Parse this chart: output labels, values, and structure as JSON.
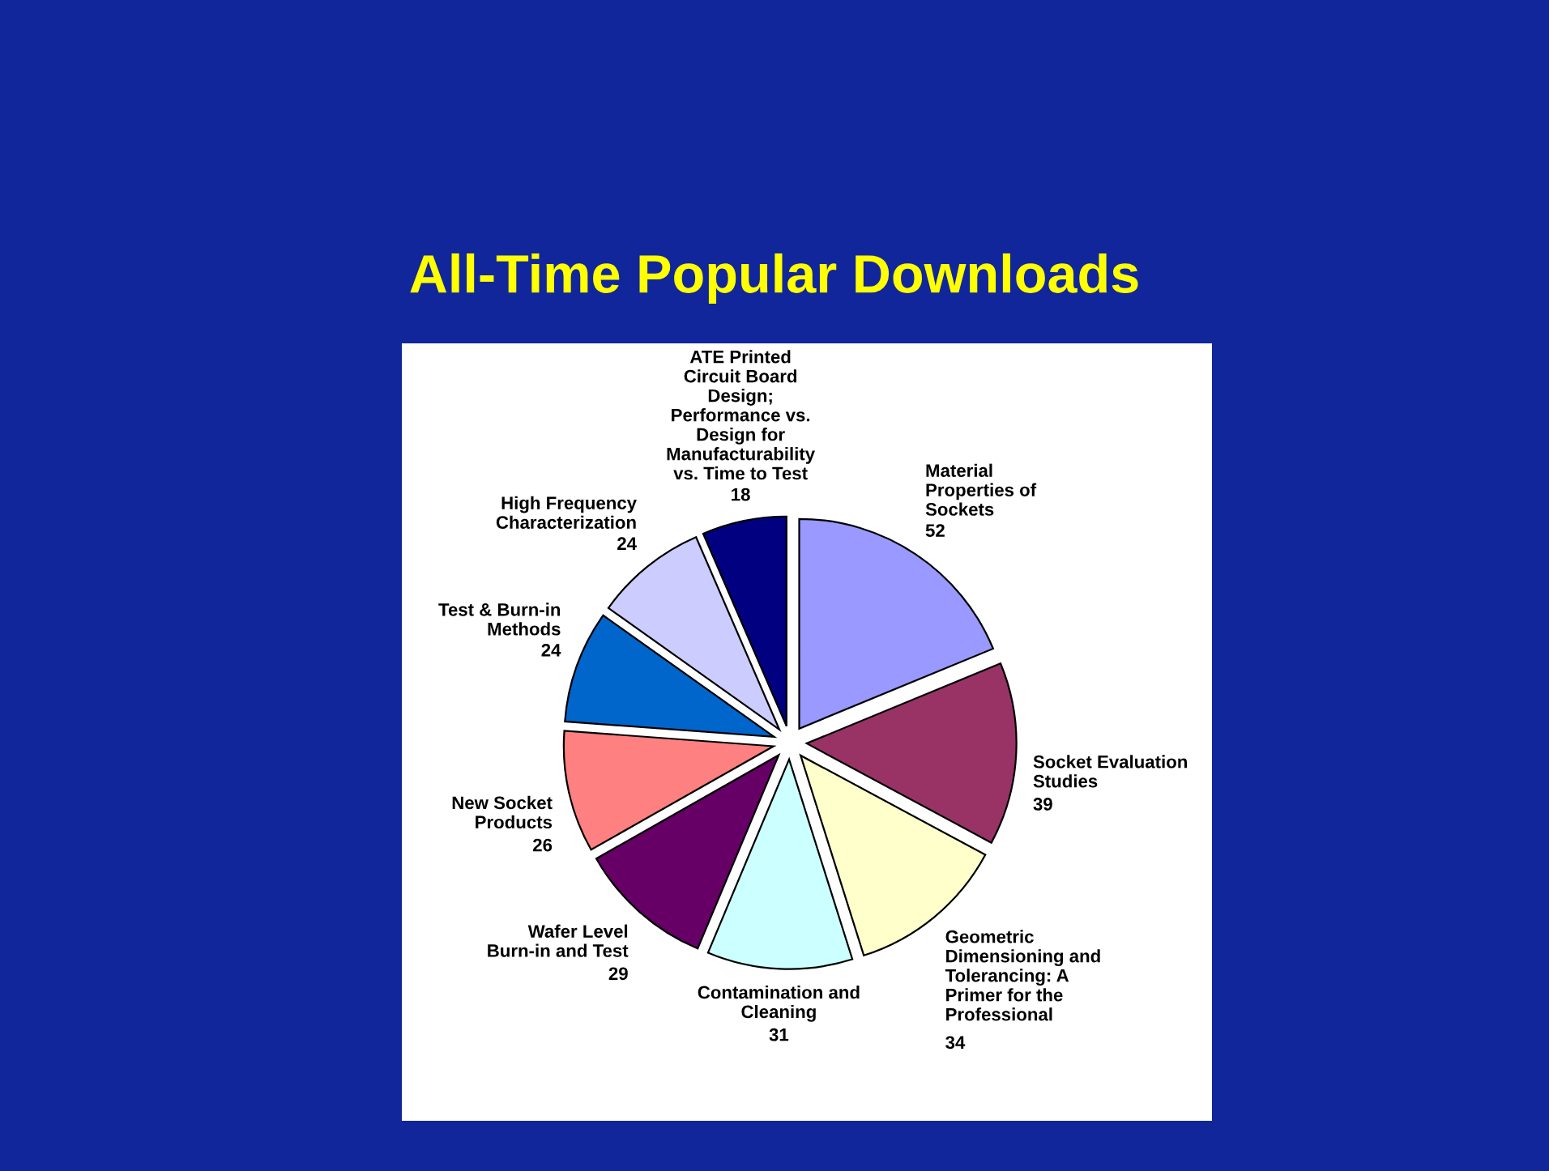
{
  "chart_data": {
    "type": "pie",
    "title": "All-Time Popular Downloads",
    "categories": [
      "Material Properties of Sockets",
      "Socket Evaluation Studies",
      "Geometric Dimensioning and Tolerancing: A Primer for the Professional",
      "Contamination and Cleaning",
      "Wafer Level Burn-in and Test",
      "New Socket Products",
      "Test & Burn-in Methods",
      "High Frequency Characterization",
      "ATE Printed Circuit Board Design; Performance vs. Design for Manufacturability vs. Time to Test"
    ],
    "values": [
      52,
      39,
      34,
      31,
      29,
      26,
      24,
      24,
      18
    ],
    "colors": [
      "#9999ff",
      "#993366",
      "#ffffcc",
      "#ccffff",
      "#660066",
      "#ff8080",
      "#0066cc",
      "#ccccff",
      "#000080"
    ],
    "data_labels": true,
    "legend": false
  }
}
